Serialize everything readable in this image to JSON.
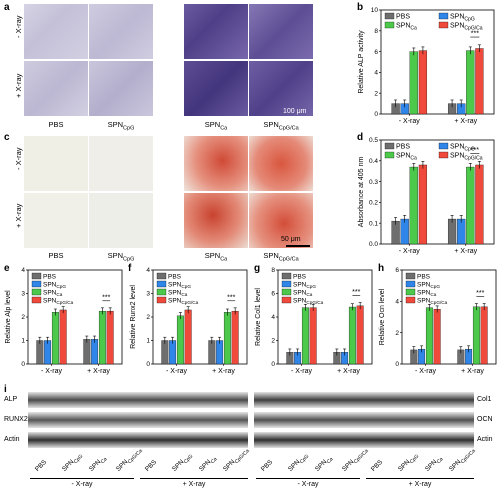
{
  "panels": {
    "a": "a",
    "b": "b",
    "c": "c",
    "d": "d",
    "e": "e",
    "f": "f",
    "g": "g",
    "h": "h",
    "i": "i"
  },
  "micro": {
    "row_labels": [
      "- X-ray",
      "+ X-ray"
    ],
    "col_labels": [
      "PBS",
      "SPN_CpG",
      "SPN_Ca",
      "SPN_CpG/Ca"
    ],
    "scale_a": "100 μm",
    "scale_c": "50 μm",
    "colors": {
      "alp_light": "#c9c6dc",
      "alp_dark": "#5b4a92",
      "ars_light": "#f1efe6",
      "ars_red": "#d9573f"
    }
  },
  "legend": [
    "PBS",
    "SPN_CpG",
    "SPN_Ca",
    "SPN_CpG/Ca"
  ],
  "series_colors": [
    "#6e6e6e",
    "#2f86e8",
    "#4cc94a",
    "#ef4a3c"
  ],
  "significance": "***",
  "chart_data": [
    {
      "id": "b",
      "type": "bar",
      "categories": [
        "- X-ray",
        "+ X-ray"
      ],
      "ylabel": "Relative ALP activity",
      "ylim": [
        0,
        10
      ],
      "yticks": [
        0,
        2,
        4,
        6,
        8,
        10
      ],
      "series": [
        {
          "name": "PBS",
          "values": [
            1.0,
            1.0
          ]
        },
        {
          "name": "SPN_CpG",
          "values": [
            1.0,
            1.0
          ]
        },
        {
          "name": "SPN_Ca",
          "values": [
            6.0,
            6.1
          ]
        },
        {
          "name": "SPN_CpG/Ca",
          "values": [
            6.1,
            6.3
          ]
        }
      ]
    },
    {
      "id": "d",
      "type": "bar",
      "categories": [
        "- X-ray",
        "+ X-ray"
      ],
      "ylabel": "Absorbance at 405 nm",
      "ylim": [
        0.0,
        0.5
      ],
      "yticks": [
        0.0,
        0.1,
        0.2,
        0.3,
        0.4,
        0.5
      ],
      "series": [
        {
          "name": "PBS",
          "values": [
            0.11,
            0.12
          ]
        },
        {
          "name": "SPN_CpG",
          "values": [
            0.12,
            0.12
          ]
        },
        {
          "name": "SPN_Ca",
          "values": [
            0.37,
            0.37
          ]
        },
        {
          "name": "SPN_CpG/Ca",
          "values": [
            0.38,
            0.38
          ]
        }
      ]
    },
    {
      "id": "e",
      "type": "bar",
      "categories": [
        "- X-ray",
        "+ X-ray"
      ],
      "ylabel": "Relative Alp level",
      "ylim": [
        0,
        4
      ],
      "yticks": [
        0,
        1,
        2,
        3,
        4
      ],
      "series": [
        {
          "name": "PBS",
          "values": [
            1.0,
            1.05
          ]
        },
        {
          "name": "SPN_CpG",
          "values": [
            1.0,
            1.05
          ]
        },
        {
          "name": "SPN_Ca",
          "values": [
            2.2,
            2.25
          ]
        },
        {
          "name": "SPN_CpG/Ca",
          "values": [
            2.3,
            2.25
          ]
        }
      ]
    },
    {
      "id": "f",
      "type": "bar",
      "categories": [
        "- X-ray",
        "+ X-ray"
      ],
      "ylabel": "Relative Runx2 level",
      "ylim": [
        0,
        4
      ],
      "yticks": [
        0,
        1,
        2,
        3,
        4
      ],
      "series": [
        {
          "name": "PBS",
          "values": [
            1.0,
            1.0
          ]
        },
        {
          "name": "SPN_CpG",
          "values": [
            1.0,
            1.0
          ]
        },
        {
          "name": "SPN_Ca",
          "values": [
            2.05,
            2.2
          ]
        },
        {
          "name": "SPN_CpG/Ca",
          "values": [
            2.3,
            2.25
          ]
        }
      ]
    },
    {
      "id": "g",
      "type": "bar",
      "categories": [
        "- X-ray",
        "+ X-ray"
      ],
      "ylabel": "Relative Col1 level",
      "ylim": [
        0,
        8
      ],
      "yticks": [
        0,
        2,
        4,
        6,
        8
      ],
      "series": [
        {
          "name": "PBS",
          "values": [
            1.0,
            1.0
          ]
        },
        {
          "name": "SPN_CpG",
          "values": [
            1.0,
            1.0
          ]
        },
        {
          "name": "SPN_Ca",
          "values": [
            4.8,
            4.85
          ]
        },
        {
          "name": "SPN_CpG/Ca",
          "values": [
            4.8,
            4.95
          ]
        }
      ]
    },
    {
      "id": "h",
      "type": "bar",
      "categories": [
        "- X-ray",
        "+ X-ray"
      ],
      "ylabel": "Relative Ocn level",
      "ylim": [
        0,
        6
      ],
      "yticks": [
        0,
        2,
        4,
        6
      ],
      "series": [
        {
          "name": "PBS",
          "values": [
            0.9,
            0.9
          ]
        },
        {
          "name": "SPN_CpG",
          "values": [
            0.95,
            0.95
          ]
        },
        {
          "name": "SPN_Ca",
          "values": [
            3.6,
            3.65
          ]
        },
        {
          "name": "SPN_CpG/Ca",
          "values": [
            3.5,
            3.65
          ]
        }
      ]
    }
  ],
  "western": {
    "left_bands": [
      "ALP",
      "RUNX2",
      "Actin"
    ],
    "right_bands": [
      "Col1",
      "OCN",
      "Actin"
    ],
    "lanes": [
      "PBS",
      "SPN_CpG",
      "SPN_Ca",
      "SPN_CpG/Ca",
      "PBS",
      "SPN_CpG",
      "SPN_Ca",
      "SPN_CpG/Ca"
    ],
    "groups": [
      "- X-ray",
      "+ X-ray"
    ]
  }
}
